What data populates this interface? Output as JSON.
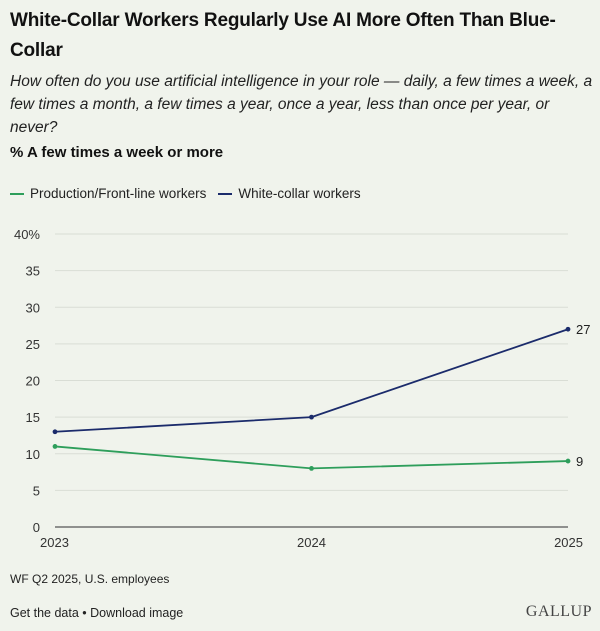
{
  "header": {
    "title": "White-Collar Workers Regularly Use AI More Often Than Blue-Collar",
    "subtitle": "How often do you use artificial intelligence in your role — daily, a few times a week, a few times a month, a few times a year, once a year, less than once per year, or never?",
    "subhead": "% A few times a week or more"
  },
  "legend": {
    "items": [
      {
        "label": "Production/Front-line workers",
        "color": "#2e9e5b"
      },
      {
        "label": "White-collar workers",
        "color": "#1b2b6b"
      }
    ]
  },
  "chart_data": {
    "type": "line",
    "x": [
      "2023",
      "2024",
      "2025"
    ],
    "series": [
      {
        "name": "Production/Front-line workers",
        "values": [
          11,
          8,
          9
        ],
        "color": "#2e9e5b"
      },
      {
        "name": "White-collar workers",
        "values": [
          13,
          15,
          27
        ],
        "color": "#1b2b6b"
      }
    ],
    "yticks": [
      "0",
      "5",
      "10",
      "15",
      "20",
      "25",
      "30",
      "35",
      "40%"
    ],
    "ylim": [
      0,
      40
    ],
    "end_labels": [
      "9",
      "27"
    ],
    "grid": true
  },
  "source": "WF Q2 2025, U.S. employees",
  "footer": {
    "get_data": "Get the data",
    "separator": " • ",
    "download": "Download image"
  },
  "brand": "GALLUP"
}
